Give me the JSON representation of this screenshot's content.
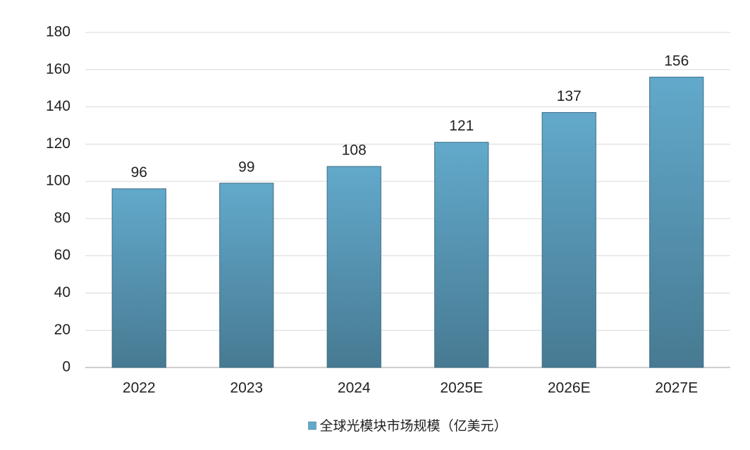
{
  "chart_data": {
    "type": "bar",
    "categories": [
      "2022",
      "2023",
      "2024",
      "2025E",
      "2026E",
      "2027E"
    ],
    "series": [
      {
        "name": "全球光模块市场规模（亿美元）",
        "color": "#62a9cb",
        "values": [
          96,
          99,
          108,
          121,
          137,
          156
        ]
      }
    ],
    "ylim": [
      0,
      180
    ],
    "yticks": [
      0,
      20,
      40,
      60,
      80,
      100,
      120,
      140,
      160,
      180
    ],
    "grid": true,
    "legend": "bottom"
  }
}
